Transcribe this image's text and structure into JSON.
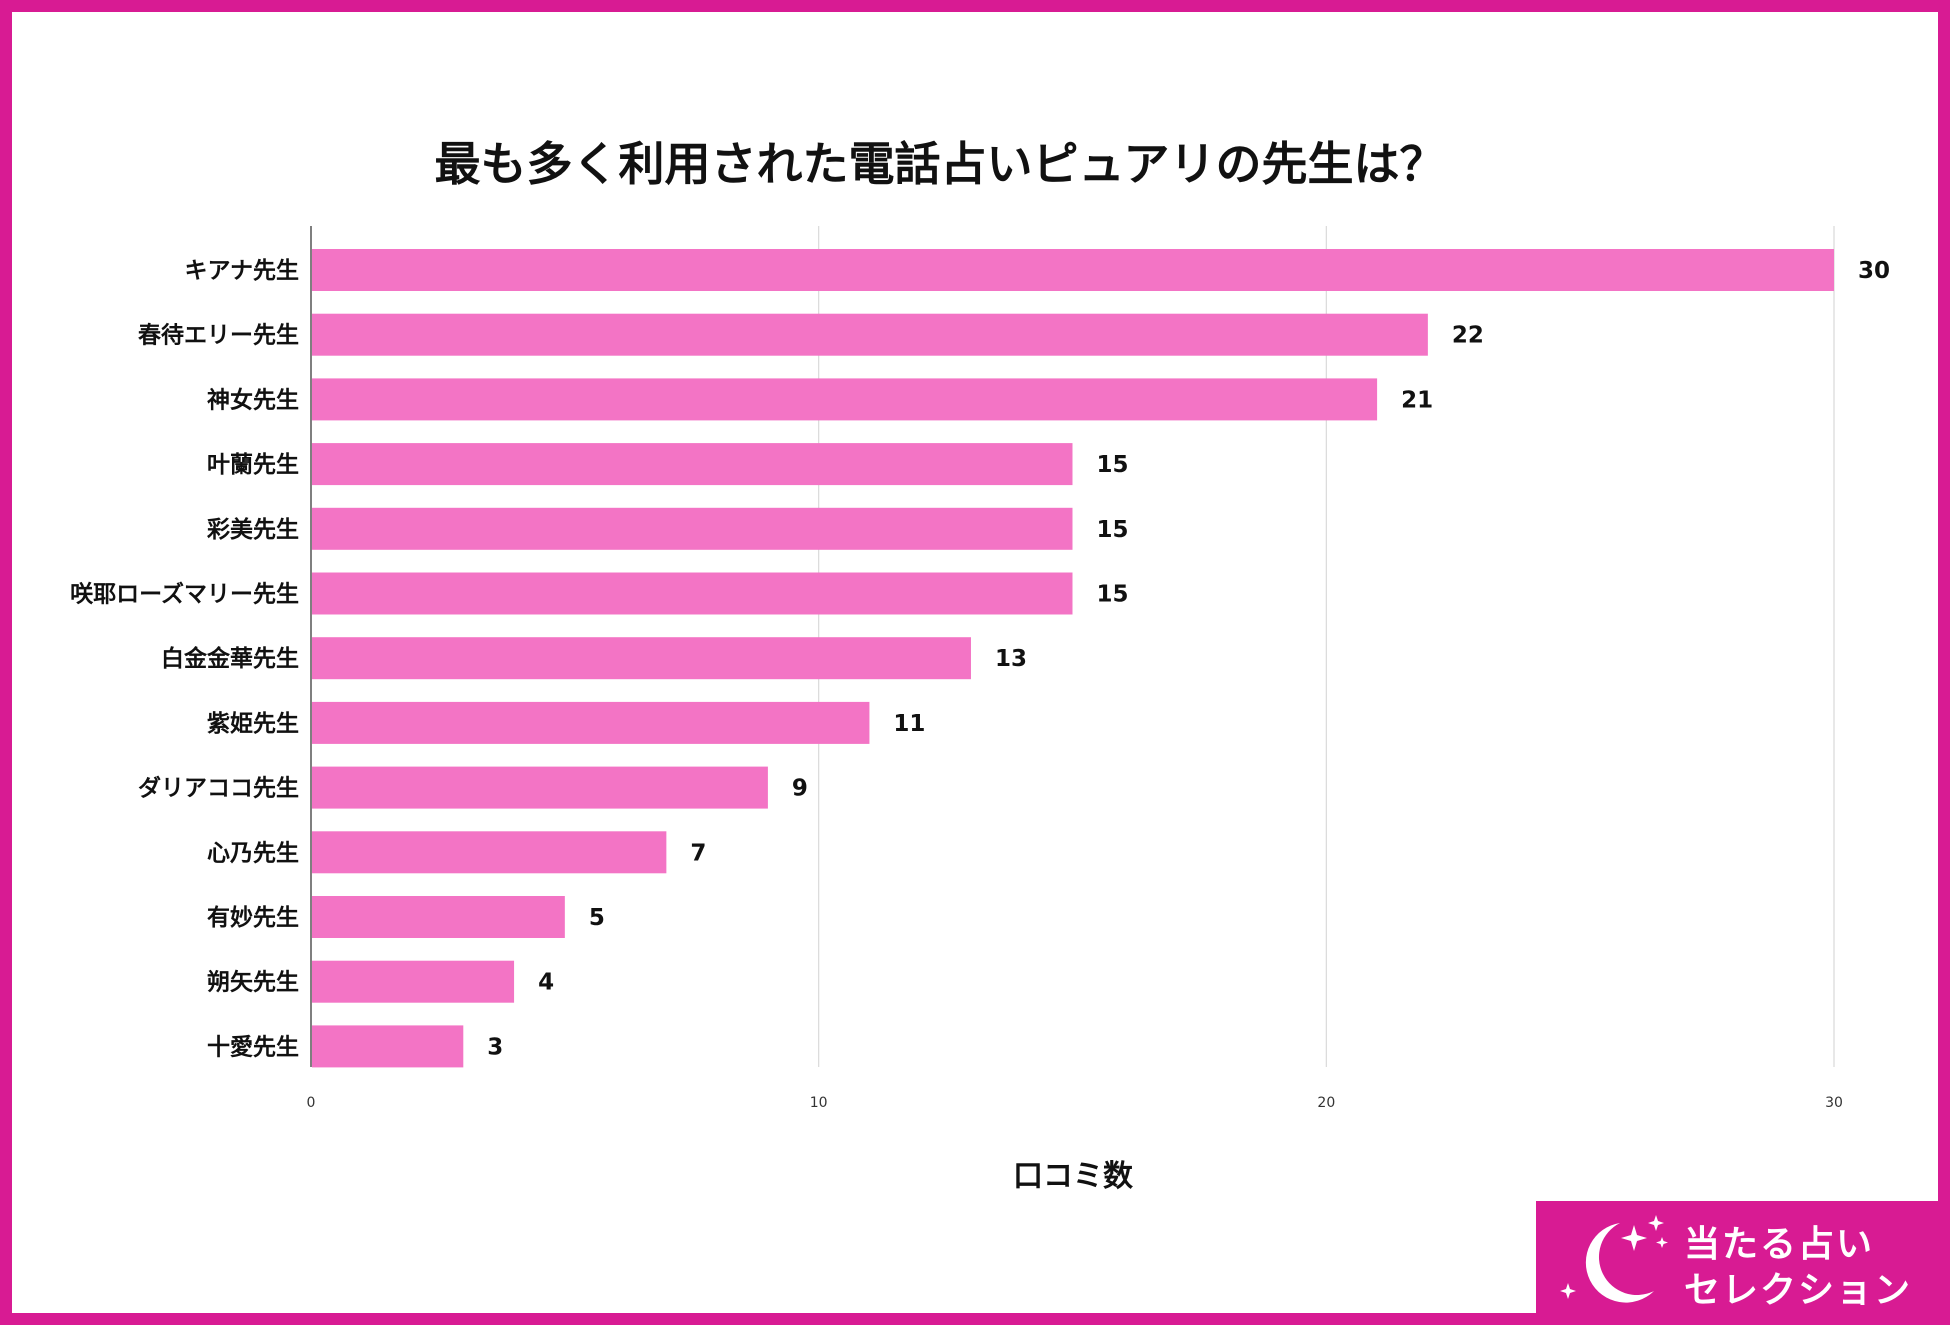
{
  "chart_data": {
    "type": "bar",
    "orientation": "horizontal",
    "title": "最も多く利用された電話占いピュアリの先生は？",
    "categories": [
      "キアナ先生",
      "春待エリー先生",
      "神女先生",
      "叶蘭先生",
      "彩美先生",
      "咲耶ローズマリー先生",
      "白金金華先生",
      "紫姫先生",
      "ダリアココ先生",
      "心乃先生",
      "有妙先生",
      "朔矢先生",
      "十愛先生"
    ],
    "values": [
      30,
      22,
      21,
      15,
      15,
      15,
      13,
      11,
      9,
      7,
      5,
      4,
      3
    ],
    "xlabel": "口コミ数",
    "ylabel": "",
    "xlim": [
      0,
      30
    ],
    "xticks": [
      0,
      10,
      20,
      30
    ],
    "grid": true,
    "bar_color": "#f374c5",
    "gridline_color": "#d9d9d9"
  },
  "brand": {
    "line1": "当たる占い",
    "line2": "セレクション",
    "color": "#d81b93",
    "icon": "crescent-moon-sparkle-icon"
  },
  "frame_color": "#d81b93"
}
